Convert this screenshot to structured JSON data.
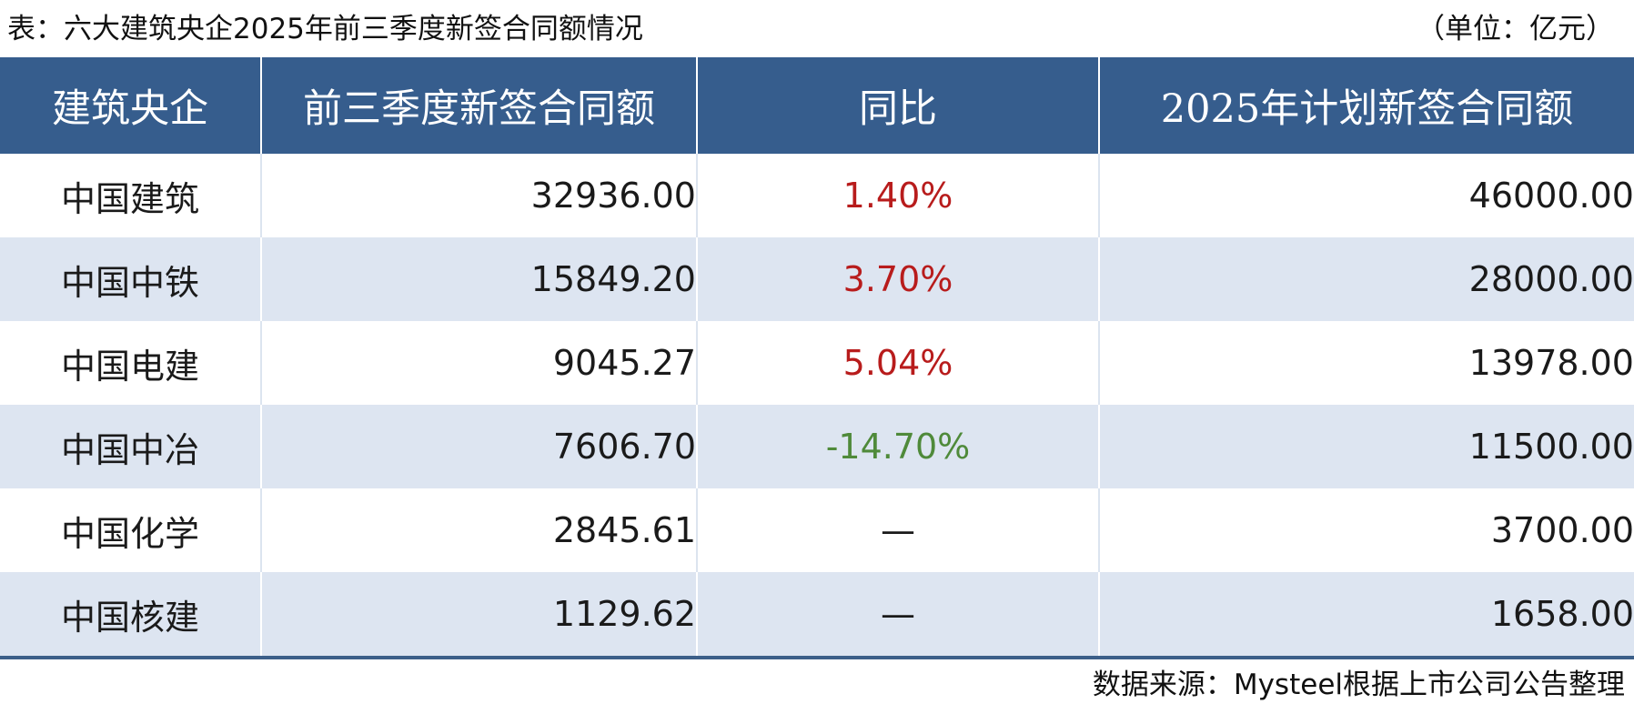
{
  "caption": "表：六大建筑央企2025年前三季度新签合同额情况",
  "unit": "（单位：亿元）",
  "table": {
    "headers": [
      "建筑央企",
      "前三季度新签合同额",
      "同比",
      "2025年计划新签合同额"
    ],
    "rows": [
      {
        "name": "中国建筑",
        "q3": "32936.00",
        "yoy": "1.40%",
        "yoy_trend": "pos",
        "plan": "46000.00"
      },
      {
        "name": "中国中铁",
        "q3": "15849.20",
        "yoy": "3.70%",
        "yoy_trend": "pos",
        "plan": "28000.00"
      },
      {
        "name": "中国电建",
        "q3": "9045.27",
        "yoy": "5.04%",
        "yoy_trend": "pos",
        "plan": "13978.00"
      },
      {
        "name": "中国中冶",
        "q3": "7606.70",
        "yoy": "-14.70%",
        "yoy_trend": "neg",
        "plan": "11500.00"
      },
      {
        "name": "中国化学",
        "q3": "2845.61",
        "yoy": "—",
        "yoy_trend": "dash",
        "plan": "3700.00"
      },
      {
        "name": "中国核建",
        "q3": "1129.62",
        "yoy": "—",
        "yoy_trend": "dash",
        "plan": "1658.00"
      }
    ]
  },
  "source": "数据来源：Mysteel根据上市公司公告整理",
  "colors": {
    "header_bg": "#365d8d",
    "stripe_bg": "#dde5f1",
    "positive": "#b81c1c",
    "negative": "#4f8a3a"
  }
}
